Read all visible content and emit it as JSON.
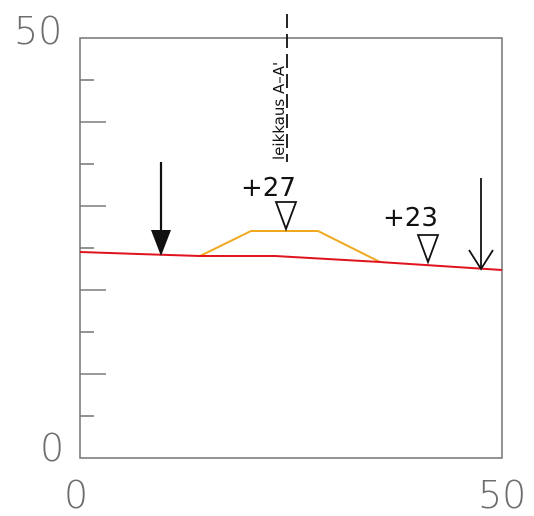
{
  "diagram": {
    "axis": {
      "x_min_label": "0",
      "x_max_label": "50",
      "y_min_label": "0",
      "y_max_label": "50",
      "frame_color": "#7a7a7a",
      "tick_color": "#7a7a7a",
      "label_color": "#6e6e6e"
    },
    "section_label": "leikkaus A–A'",
    "elevation_markers": [
      {
        "label": "+27"
      },
      {
        "label": "+23"
      }
    ],
    "colors": {
      "ground_line": "#e0141e",
      "structure_outline": "#f0a81e",
      "arrows": "#111111"
    }
  }
}
